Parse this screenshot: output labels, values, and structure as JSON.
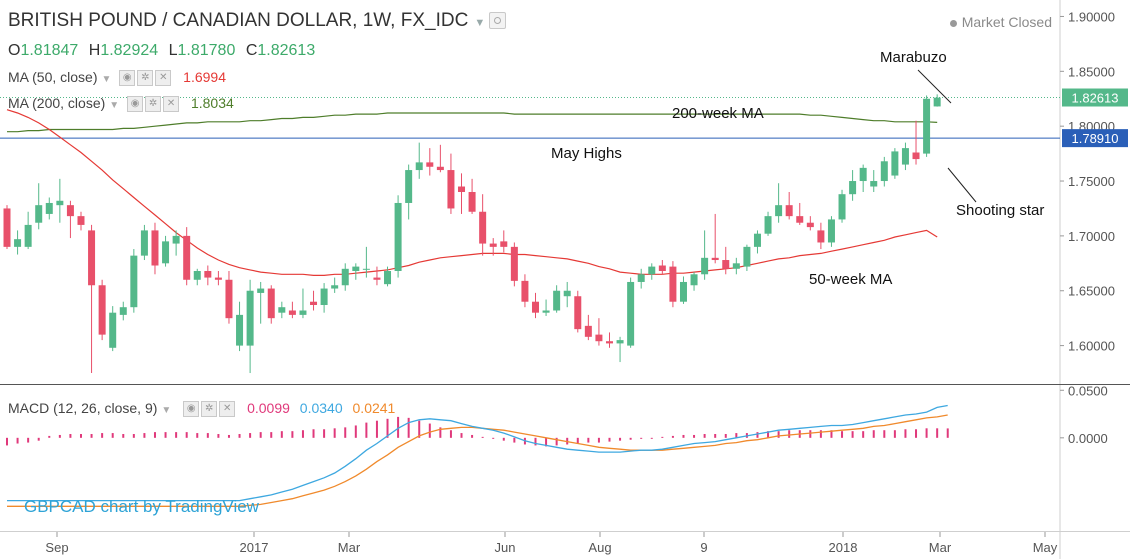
{
  "header": {
    "title": "BRITISH POUND / CANADIAN DOLLAR, 1W, FX_IDC",
    "ohlc": {
      "o_label": "O",
      "o": "1.81847",
      "h_label": "H",
      "h": "1.82924",
      "l_label": "L",
      "l": "1.81780",
      "c_label": "C",
      "c": "1.82613"
    },
    "market_status": "Market Closed",
    "ma50": {
      "label": "MA (50, close)",
      "value": "1.6994",
      "color": "#e53935"
    },
    "ma200": {
      "label": "MA (200, close)",
      "value": "1.8034",
      "color": "#4e7d2a"
    },
    "macd": {
      "label": "MACD (12, 26, close, 9)",
      "hist": "0.0099",
      "macd": "0.0340",
      "signal": "0.0241"
    },
    "watermark": "GBPCAD chart by TradingView"
  },
  "chart_data": {
    "type": "candlestick",
    "price_axis": {
      "min": 1.565,
      "max": 1.915,
      "ticks": [
        "1.90000",
        "1.85000",
        "1.80000",
        "1.75000",
        "1.70000",
        "1.65000",
        "1.60000"
      ],
      "tick_values": [
        1.9,
        1.85,
        1.8,
        1.75,
        1.7,
        1.65,
        1.6
      ]
    },
    "x_labels": [
      "Sep",
      "2017",
      "Mar",
      "Jun",
      "Aug",
      "9",
      "2018",
      "Mar",
      "May"
    ],
    "last_price": {
      "label": "1.82613",
      "value": 1.82613
    },
    "may_highs": {
      "label": "1.78910",
      "value": 1.7891
    },
    "annotations": [
      "Marabuzo",
      "200-week MA",
      "May Highs",
      "Shooting star",
      "50-week MA"
    ],
    "colors": {
      "up": "#54b88a",
      "down": "#e8506a",
      "ma50": "#e53935",
      "ma200": "#4e7d2a",
      "macd_line": "#3ea8e0",
      "signal_line": "#f08a2c",
      "hist": "#e0397b",
      "level": "#2a5fb8"
    },
    "candles": [
      {
        "o": 1.725,
        "h": 1.728,
        "l": 1.688,
        "c": 1.69
      },
      {
        "o": 1.69,
        "h": 1.705,
        "l": 1.683,
        "c": 1.697
      },
      {
        "o": 1.69,
        "h": 1.722,
        "l": 1.688,
        "c": 1.71
      },
      {
        "o": 1.712,
        "h": 1.748,
        "l": 1.706,
        "c": 1.728
      },
      {
        "o": 1.72,
        "h": 1.735,
        "l": 1.715,
        "c": 1.73
      },
      {
        "o": 1.728,
        "h": 1.752,
        "l": 1.712,
        "c": 1.732
      },
      {
        "o": 1.728,
        "h": 1.732,
        "l": 1.698,
        "c": 1.718
      },
      {
        "o": 1.718,
        "h": 1.722,
        "l": 1.705,
        "c": 1.71
      },
      {
        "o": 1.705,
        "h": 1.71,
        "l": 1.575,
        "c": 1.655
      },
      {
        "o": 1.655,
        "h": 1.66,
        "l": 1.605,
        "c": 1.61
      },
      {
        "o": 1.598,
        "h": 1.636,
        "l": 1.595,
        "c": 1.63
      },
      {
        "o": 1.628,
        "h": 1.64,
        "l": 1.623,
        "c": 1.635
      },
      {
        "o": 1.635,
        "h": 1.688,
        "l": 1.63,
        "c": 1.682
      },
      {
        "o": 1.682,
        "h": 1.71,
        "l": 1.678,
        "c": 1.705
      },
      {
        "o": 1.705,
        "h": 1.712,
        "l": 1.665,
        "c": 1.673
      },
      {
        "o": 1.675,
        "h": 1.7,
        "l": 1.672,
        "c": 1.695
      },
      {
        "o": 1.693,
        "h": 1.705,
        "l": 1.682,
        "c": 1.7
      },
      {
        "o": 1.7,
        "h": 1.708,
        "l": 1.655,
        "c": 1.66
      },
      {
        "o": 1.66,
        "h": 1.67,
        "l": 1.655,
        "c": 1.668
      },
      {
        "o": 1.668,
        "h": 1.673,
        "l": 1.655,
        "c": 1.662
      },
      {
        "o": 1.662,
        "h": 1.668,
        "l": 1.655,
        "c": 1.66
      },
      {
        "o": 1.66,
        "h": 1.668,
        "l": 1.62,
        "c": 1.625
      },
      {
        "o": 1.6,
        "h": 1.64,
        "l": 1.595,
        "c": 1.628
      },
      {
        "o": 1.6,
        "h": 1.66,
        "l": 1.575,
        "c": 1.65
      },
      {
        "o": 1.648,
        "h": 1.658,
        "l": 1.62,
        "c": 1.652
      },
      {
        "o": 1.652,
        "h": 1.655,
        "l": 1.62,
        "c": 1.625
      },
      {
        "o": 1.63,
        "h": 1.64,
        "l": 1.625,
        "c": 1.635
      },
      {
        "o": 1.632,
        "h": 1.64,
        "l": 1.625,
        "c": 1.628
      },
      {
        "o": 1.628,
        "h": 1.652,
        "l": 1.625,
        "c": 1.632
      },
      {
        "o": 1.64,
        "h": 1.65,
        "l": 1.632,
        "c": 1.637
      },
      {
        "o": 1.637,
        "h": 1.657,
        "l": 1.63,
        "c": 1.652
      },
      {
        "o": 1.652,
        "h": 1.662,
        "l": 1.648,
        "c": 1.655
      },
      {
        "o": 1.655,
        "h": 1.675,
        "l": 1.65,
        "c": 1.67
      },
      {
        "o": 1.668,
        "h": 1.675,
        "l": 1.66,
        "c": 1.672
      },
      {
        "o": 1.67,
        "h": 1.69,
        "l": 1.662,
        "c": 1.67
      },
      {
        "o": 1.662,
        "h": 1.672,
        "l": 1.655,
        "c": 1.66
      },
      {
        "o": 1.656,
        "h": 1.672,
        "l": 1.654,
        "c": 1.668
      },
      {
        "o": 1.668,
        "h": 1.737,
        "l": 1.662,
        "c": 1.73
      },
      {
        "o": 1.73,
        "h": 1.765,
        "l": 1.715,
        "c": 1.76
      },
      {
        "o": 1.76,
        "h": 1.785,
        "l": 1.752,
        "c": 1.767
      },
      {
        "o": 1.767,
        "h": 1.78,
        "l": 1.755,
        "c": 1.763
      },
      {
        "o": 1.763,
        "h": 1.783,
        "l": 1.758,
        "c": 1.76
      },
      {
        "o": 1.76,
        "h": 1.775,
        "l": 1.72,
        "c": 1.725
      },
      {
        "o": 1.745,
        "h": 1.757,
        "l": 1.72,
        "c": 1.74
      },
      {
        "o": 1.74,
        "h": 1.752,
        "l": 1.72,
        "c": 1.722
      },
      {
        "o": 1.722,
        "h": 1.738,
        "l": 1.682,
        "c": 1.693
      },
      {
        "o": 1.693,
        "h": 1.698,
        "l": 1.682,
        "c": 1.69
      },
      {
        "o": 1.695,
        "h": 1.705,
        "l": 1.685,
        "c": 1.69
      },
      {
        "o": 1.69,
        "h": 1.694,
        "l": 1.654,
        "c": 1.659
      },
      {
        "o": 1.659,
        "h": 1.665,
        "l": 1.635,
        "c": 1.64
      },
      {
        "o": 1.64,
        "h": 1.648,
        "l": 1.625,
        "c": 1.63
      },
      {
        "o": 1.63,
        "h": 1.642,
        "l": 1.627,
        "c": 1.632
      },
      {
        "o": 1.632,
        "h": 1.655,
        "l": 1.63,
        "c": 1.65
      },
      {
        "o": 1.645,
        "h": 1.658,
        "l": 1.635,
        "c": 1.65
      },
      {
        "o": 1.645,
        "h": 1.65,
        "l": 1.612,
        "c": 1.615
      },
      {
        "o": 1.618,
        "h": 1.628,
        "l": 1.605,
        "c": 1.608
      },
      {
        "o": 1.61,
        "h": 1.625,
        "l": 1.6,
        "c": 1.604
      },
      {
        "o": 1.604,
        "h": 1.612,
        "l": 1.598,
        "c": 1.602
      },
      {
        "o": 1.602,
        "h": 1.608,
        "l": 1.585,
        "c": 1.605
      },
      {
        "o": 1.6,
        "h": 1.662,
        "l": 1.598,
        "c": 1.658
      },
      {
        "o": 1.658,
        "h": 1.67,
        "l": 1.652,
        "c": 1.665
      },
      {
        "o": 1.665,
        "h": 1.675,
        "l": 1.66,
        "c": 1.672
      },
      {
        "o": 1.673,
        "h": 1.678,
        "l": 1.665,
        "c": 1.668
      },
      {
        "o": 1.672,
        "h": 1.677,
        "l": 1.635,
        "c": 1.64
      },
      {
        "o": 1.64,
        "h": 1.663,
        "l": 1.638,
        "c": 1.658
      },
      {
        "o": 1.655,
        "h": 1.667,
        "l": 1.65,
        "c": 1.665
      },
      {
        "o": 1.665,
        "h": 1.705,
        "l": 1.66,
        "c": 1.68
      },
      {
        "o": 1.68,
        "h": 1.72,
        "l": 1.675,
        "c": 1.678
      },
      {
        "o": 1.678,
        "h": 1.69,
        "l": 1.665,
        "c": 1.67
      },
      {
        "o": 1.67,
        "h": 1.68,
        "l": 1.665,
        "c": 1.675
      },
      {
        "o": 1.672,
        "h": 1.692,
        "l": 1.668,
        "c": 1.69
      },
      {
        "o": 1.69,
        "h": 1.705,
        "l": 1.684,
        "c": 1.702
      },
      {
        "o": 1.702,
        "h": 1.722,
        "l": 1.7,
        "c": 1.718
      },
      {
        "o": 1.718,
        "h": 1.748,
        "l": 1.712,
        "c": 1.728
      },
      {
        "o": 1.728,
        "h": 1.74,
        "l": 1.715,
        "c": 1.718
      },
      {
        "o": 1.718,
        "h": 1.73,
        "l": 1.71,
        "c": 1.712
      },
      {
        "o": 1.712,
        "h": 1.718,
        "l": 1.705,
        "c": 1.708
      },
      {
        "o": 1.705,
        "h": 1.712,
        "l": 1.688,
        "c": 1.694
      },
      {
        "o": 1.694,
        "h": 1.718,
        "l": 1.69,
        "c": 1.715
      },
      {
        "o": 1.715,
        "h": 1.742,
        "l": 1.712,
        "c": 1.738
      },
      {
        "o": 1.738,
        "h": 1.76,
        "l": 1.732,
        "c": 1.75
      },
      {
        "o": 1.75,
        "h": 1.765,
        "l": 1.74,
        "c": 1.762
      },
      {
        "o": 1.745,
        "h": 1.76,
        "l": 1.74,
        "c": 1.75
      },
      {
        "o": 1.75,
        "h": 1.772,
        "l": 1.745,
        "c": 1.768
      },
      {
        "o": 1.755,
        "h": 1.78,
        "l": 1.752,
        "c": 1.777
      },
      {
        "o": 1.765,
        "h": 1.785,
        "l": 1.76,
        "c": 1.78
      },
      {
        "o": 1.776,
        "h": 1.805,
        "l": 1.765,
        "c": 1.77
      },
      {
        "o": 1.775,
        "h": 1.828,
        "l": 1.772,
        "c": 1.825
      },
      {
        "o": 1.818,
        "h": 1.829,
        "l": 1.8178,
        "c": 1.826
      }
    ],
    "ma50": [
      1.815,
      1.812,
      1.808,
      1.803,
      1.797,
      1.79,
      1.783,
      1.776,
      1.768,
      1.76,
      1.751,
      1.743,
      1.735,
      1.727,
      1.719,
      1.711,
      1.703,
      1.696,
      1.689,
      1.683,
      1.678,
      1.674,
      1.671,
      1.669,
      1.667,
      1.666,
      1.665,
      1.665,
      1.665,
      1.664,
      1.664,
      1.665,
      1.665,
      1.666,
      1.667,
      1.668,
      1.669,
      1.671,
      1.673,
      1.676,
      1.678,
      1.68,
      1.681,
      1.682,
      1.683,
      1.684,
      1.684,
      1.684,
      1.683,
      1.683,
      1.682,
      1.681,
      1.68,
      1.679,
      1.677,
      1.675,
      1.672,
      1.67,
      1.667,
      1.666,
      1.665,
      1.665,
      1.665,
      1.666,
      1.666,
      1.667,
      1.668,
      1.669,
      1.67,
      1.671,
      1.673,
      1.675,
      1.677,
      1.679,
      1.68,
      1.682,
      1.683,
      1.684,
      1.686,
      1.688,
      1.69,
      1.692,
      1.694,
      1.696,
      1.699,
      1.701,
      1.703,
      1.705,
      1.699
    ],
    "ma200": [
      1.795,
      1.795,
      1.796,
      1.796,
      1.797,
      1.797,
      1.797,
      1.797,
      1.797,
      1.797,
      1.797,
      1.798,
      1.798,
      1.799,
      1.8,
      1.801,
      1.802,
      1.803,
      1.803,
      1.804,
      1.804,
      1.804,
      1.804,
      1.805,
      1.805,
      1.806,
      1.807,
      1.807,
      1.808,
      1.808,
      1.809,
      1.81,
      1.81,
      1.811,
      1.811,
      1.811,
      1.812,
      1.812,
      1.812,
      1.812,
      1.812,
      1.812,
      1.812,
      1.812,
      1.812,
      1.812,
      1.812,
      1.812,
      1.811,
      1.811,
      1.811,
      1.811,
      1.811,
      1.811,
      1.811,
      1.811,
      1.811,
      1.811,
      1.811,
      1.811,
      1.811,
      1.811,
      1.811,
      1.811,
      1.811,
      1.811,
      1.811,
      1.811,
      1.811,
      1.811,
      1.811,
      1.811,
      1.811,
      1.811,
      1.811,
      1.811,
      1.81,
      1.81,
      1.809,
      1.808,
      1.807,
      1.806,
      1.805,
      1.805,
      1.804,
      1.804,
      1.804,
      1.804,
      1.8034
    ],
    "macd_axis": {
      "min": -0.098,
      "max": 0.0545,
      "ticks": [
        "0.0500",
        "0.0000"
      ],
      "tick_values": [
        0.05,
        0.0
      ]
    },
    "macd_line": [
      -0.066,
      -0.066,
      -0.066,
      -0.066,
      -0.066,
      -0.066,
      -0.066,
      -0.066,
      -0.066,
      -0.066,
      -0.066,
      -0.066,
      -0.066,
      -0.066,
      -0.066,
      -0.066,
      -0.066,
      -0.066,
      -0.066,
      -0.066,
      -0.066,
      -0.066,
      -0.066,
      -0.064,
      -0.062,
      -0.06,
      -0.057,
      -0.054,
      -0.05,
      -0.046,
      -0.042,
      -0.037,
      -0.03,
      -0.022,
      -0.013,
      -0.006,
      0.002,
      0.01,
      0.016,
      0.019,
      0.02,
      0.019,
      0.018,
      0.015,
      0.012,
      0.01,
      0.008,
      0.005,
      0.001,
      -0.003,
      -0.006,
      -0.008,
      -0.01,
      -0.012,
      -0.013,
      -0.014,
      -0.015,
      -0.015,
      -0.015,
      -0.014,
      -0.013,
      -0.013,
      -0.012,
      -0.01,
      -0.008,
      -0.006,
      -0.005,
      -0.004,
      -0.002,
      0.0,
      0.002,
      0.004,
      0.006,
      0.008,
      0.009,
      0.01,
      0.011,
      0.012,
      0.013,
      0.013,
      0.014,
      0.016,
      0.018,
      0.02,
      0.022,
      0.024,
      0.025,
      0.027,
      0.032,
      0.034
    ],
    "signal_line": [
      -0.072,
      -0.072,
      -0.072,
      -0.072,
      -0.072,
      -0.072,
      -0.072,
      -0.072,
      -0.072,
      -0.072,
      -0.072,
      -0.072,
      -0.072,
      -0.072,
      -0.072,
      -0.072,
      -0.072,
      -0.072,
      -0.072,
      -0.072,
      -0.072,
      -0.072,
      -0.072,
      -0.071,
      -0.07,
      -0.068,
      -0.066,
      -0.064,
      -0.061,
      -0.058,
      -0.055,
      -0.051,
      -0.046,
      -0.04,
      -0.033,
      -0.025,
      -0.018,
      -0.01,
      -0.004,
      0.002,
      0.006,
      0.009,
      0.01,
      0.011,
      0.011,
      0.01,
      0.009,
      0.008,
      0.006,
      0.004,
      0.002,
      0.0,
      -0.002,
      -0.004,
      -0.006,
      -0.008,
      -0.01,
      -0.011,
      -0.012,
      -0.013,
      -0.013,
      -0.013,
      -0.013,
      -0.012,
      -0.011,
      -0.01,
      -0.009,
      -0.008,
      -0.006,
      -0.005,
      -0.003,
      -0.002,
      0.0,
      0.002,
      0.003,
      0.004,
      0.005,
      0.006,
      0.007,
      0.008,
      0.009,
      0.01,
      0.012,
      0.013,
      0.015,
      0.017,
      0.019,
      0.021,
      0.022,
      0.024
    ],
    "histogram": [
      -0.008,
      -0.006,
      -0.005,
      -0.003,
      0.002,
      0.003,
      0.004,
      0.004,
      0.004,
      0.005,
      0.005,
      0.004,
      0.004,
      0.005,
      0.006,
      0.006,
      0.006,
      0.006,
      0.005,
      0.005,
      0.004,
      0.003,
      0.004,
      0.005,
      0.006,
      0.006,
      0.007,
      0.007,
      0.008,
      0.009,
      0.009,
      0.01,
      0.011,
      0.013,
      0.016,
      0.018,
      0.02,
      0.022,
      0.021,
      0.018,
      0.015,
      0.011,
      0.008,
      0.005,
      0.003,
      0.001,
      -0.001,
      -0.003,
      -0.005,
      -0.007,
      -0.008,
      -0.009,
      -0.008,
      -0.007,
      -0.006,
      -0.005,
      -0.005,
      -0.004,
      -0.003,
      -0.002,
      -0.001,
      0.0,
      0.001,
      0.002,
      0.003,
      0.003,
      0.004,
      0.004,
      0.004,
      0.005,
      0.005,
      0.006,
      0.007,
      0.007,
      0.008,
      0.008,
      0.008,
      0.008,
      0.008,
      0.007,
      0.007,
      0.007,
      0.008,
      0.008,
      0.008,
      0.009,
      0.009,
      0.01,
      0.01,
      0.0099
    ],
    "legend": "top-left",
    "grid": false
  }
}
